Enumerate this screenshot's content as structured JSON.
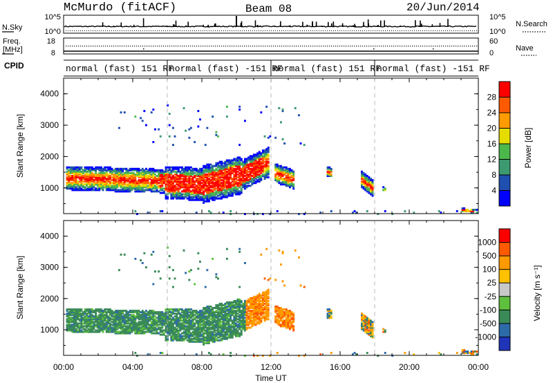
{
  "header": {
    "station": "McMurdo (fitACF)",
    "beam": "Beam 08",
    "date": "20/Jun/2014"
  },
  "top_panels": {
    "nsky_label": "N.Sky",
    "nsky_ticks": [
      "10^5",
      "10^0"
    ],
    "nsearch_label": "N.Search",
    "nsearch_ticks": [
      "10^5",
      "10^0"
    ],
    "freq_label_1": "Freq.",
    "freq_label_2": "[MHz]",
    "freq_ticks": [
      "18",
      "8"
    ],
    "nave_label": "Nave",
    "nave_ticks": [
      "60",
      "0"
    ],
    "cpid_label": "CPID",
    "cpid_segments": [
      {
        "label": "normal (fast) 151 RF",
        "start": 0,
        "end": 6
      },
      {
        "label": "normal (fast) -151 RF",
        "start": 6,
        "end": 12
      },
      {
        "label": "normal (fast) 151 RF",
        "start": 12,
        "end": 18
      },
      {
        "label": "normal (fast) -151 RF",
        "start": 18,
        "end": 24
      }
    ]
  },
  "colors": {
    "power": [
      "#0000ff",
      "#1f4fb0",
      "#3d9a70",
      "#4cb84c",
      "#e6dd00",
      "#ff9a00",
      "#ff5a00",
      "#ff0000"
    ],
    "velocity": [
      "#ff0000",
      "#ff5a00",
      "#ff9a00",
      "#ffc000",
      "#c8c8c8",
      "#5ec03c",
      "#3a8a58",
      "#2c6aa8",
      "#2034b8"
    ]
  },
  "chart_data": [
    {
      "type": "heatmap",
      "panel": "power",
      "ylabel": "Slant Range [km]",
      "xlabel": "Time UT",
      "xlim": [
        0,
        24
      ],
      "ylim": [
        180,
        4500
      ],
      "xticks": [
        "00:00",
        "04:00",
        "08:00",
        "12:00",
        "16:00",
        "20:00",
        "00:00"
      ],
      "yticks": [
        "1000",
        "2000",
        "3000",
        "4000"
      ],
      "colorbar_label": "Power [dB]",
      "colorbar_ticks": [
        "4",
        "8",
        "12",
        "16",
        "20",
        "24",
        "28"
      ]
    },
    {
      "type": "heatmap",
      "panel": "velocity",
      "ylabel": "Slant Range [km]",
      "xlabel": "Time UT",
      "xlim": [
        0,
        24
      ],
      "ylim": [
        180,
        4500
      ],
      "xticks": [
        "00:00",
        "04:00",
        "08:00",
        "12:00",
        "16:00",
        "20:00",
        "00:00"
      ],
      "yticks": [
        "1000",
        "2000",
        "3000",
        "4000"
      ],
      "colorbar_label": "Velocity [m s⁻¹]",
      "colorbar_ticks": [
        "1000",
        "500",
        "100",
        "25",
        "-25",
        "-100",
        "-500",
        "-1000"
      ]
    }
  ]
}
